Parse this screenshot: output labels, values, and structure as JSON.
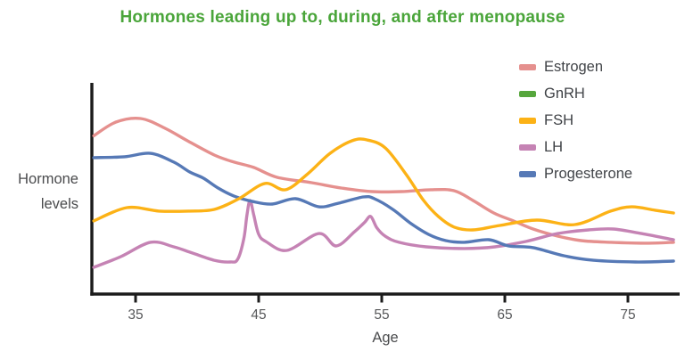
{
  "title": {
    "text": "Hormones leading up to, during, and after menopause",
    "color": "#4aa53a"
  },
  "axes": {
    "y_label_lines": [
      "Hormone",
      "levels"
    ],
    "x_label": "Age",
    "x_tick_labels": [
      "35",
      "45",
      "55",
      "65",
      "75"
    ]
  },
  "legend": {
    "items": [
      {
        "label": "Estrogen",
        "color": "#e5908e"
      },
      {
        "label": "GnRH",
        "color": "#56a63c"
      },
      {
        "label": "FSH",
        "color": "#fcb216"
      },
      {
        "label": "LH",
        "color": "#c583b4"
      },
      {
        "label": "Progesterone",
        "color": "#5679b6"
      }
    ]
  },
  "chart_data": {
    "type": "line",
    "title": "Hormones leading up to, during, and after menopause",
    "xlabel": "Age",
    "ylabel": "Hormone levels",
    "x_axis": {
      "ticks": [
        35,
        45,
        55,
        65,
        75
      ],
      "range": [
        31.5,
        79
      ]
    },
    "y_axis": {
      "range": [
        0,
        100
      ],
      "ticks": [],
      "note": "unlabeled relative hormone level"
    },
    "grid": false,
    "legend_position": "top-right",
    "draw_order": [
      "Estrogen",
      "LH",
      "Progesterone",
      "FSH"
    ],
    "series": [
      {
        "name": "Estrogen",
        "color": "#e5908e",
        "points": [
          [
            31.6,
            74
          ],
          [
            33.4,
            80.4
          ],
          [
            35.4,
            82.1
          ],
          [
            37.4,
            77.5
          ],
          [
            39.2,
            71.7
          ],
          [
            41.4,
            65
          ],
          [
            43,
            61.7
          ],
          [
            44.6,
            59.2
          ],
          [
            46.5,
            54.6
          ],
          [
            49.3,
            52.1
          ],
          [
            51.7,
            49.6
          ],
          [
            54.2,
            47.9
          ],
          [
            56.6,
            47.9
          ],
          [
            59,
            48.8
          ],
          [
            60.9,
            48.3
          ],
          [
            62.4,
            43.8
          ],
          [
            64.1,
            37.9
          ],
          [
            65.7,
            34.2
          ],
          [
            67.3,
            30.4
          ],
          [
            69.3,
            27.1
          ],
          [
            71.2,
            25
          ],
          [
            73.6,
            24.2
          ],
          [
            76.7,
            23.8
          ],
          [
            78.7,
            24.2
          ]
        ]
      },
      {
        "name": "GnRH",
        "color": "#56a63c",
        "points": [],
        "note": "appears in legend but no curve is visible in the plot"
      },
      {
        "name": "FSH",
        "color": "#fcb216",
        "points": [
          [
            31.6,
            34.2
          ],
          [
            34.3,
            40.4
          ],
          [
            36.9,
            38.8
          ],
          [
            39.3,
            38.8
          ],
          [
            41.4,
            39.6
          ],
          [
            43.4,
            44.6
          ],
          [
            45.5,
            51.7
          ],
          [
            47.2,
            48.8
          ],
          [
            49,
            56.3
          ],
          [
            50.8,
            65.8
          ],
          [
            52.6,
            71.7
          ],
          [
            53.8,
            72.1
          ],
          [
            55.3,
            68.3
          ],
          [
            57,
            55.8
          ],
          [
            58.4,
            43.8
          ],
          [
            59.6,
            36.3
          ],
          [
            60.9,
            31.3
          ],
          [
            62.4,
            30
          ],
          [
            64.6,
            32.1
          ],
          [
            67.6,
            34.6
          ],
          [
            70.7,
            32.5
          ],
          [
            73.6,
            38.8
          ],
          [
            75.3,
            40.8
          ],
          [
            77.2,
            39.2
          ],
          [
            78.7,
            37.9
          ]
        ]
      },
      {
        "name": "LH",
        "color": "#c583b4",
        "points": [
          [
            31.6,
            12.5
          ],
          [
            33.8,
            17.5
          ],
          [
            36.2,
            24.2
          ],
          [
            38.1,
            22.1
          ],
          [
            39.6,
            19.2
          ],
          [
            41.4,
            15.8
          ],
          [
            42.7,
            15
          ],
          [
            43.3,
            16.3
          ],
          [
            43.8,
            26
          ],
          [
            44.05,
            37
          ],
          [
            44.3,
            43.8
          ],
          [
            44.6,
            37
          ],
          [
            45,
            28
          ],
          [
            45.6,
            24.5
          ],
          [
            47.3,
            20.4
          ],
          [
            49.9,
            28.3
          ],
          [
            51.3,
            22.5
          ],
          [
            52.8,
            29.2
          ],
          [
            53.6,
            33.5
          ],
          [
            54.1,
            36.3
          ],
          [
            54.6,
            31
          ],
          [
            55.3,
            27
          ],
          [
            56.4,
            24.2
          ],
          [
            58.6,
            22.1
          ],
          [
            61.7,
            21.3
          ],
          [
            64.2,
            22.1
          ],
          [
            66.7,
            24.6
          ],
          [
            69.3,
            28.3
          ],
          [
            71.8,
            30
          ],
          [
            73.8,
            30.4
          ],
          [
            76.1,
            28.3
          ],
          [
            78.7,
            25.4
          ]
        ]
      },
      {
        "name": "Progesterone",
        "color": "#5679b6",
        "points": [
          [
            31.6,
            63.8
          ],
          [
            34.1,
            64.2
          ],
          [
            36.2,
            65.8
          ],
          [
            38.1,
            61.7
          ],
          [
            39.4,
            57.1
          ],
          [
            40.5,
            54.2
          ],
          [
            41.7,
            49.6
          ],
          [
            43,
            45.8
          ],
          [
            44.5,
            43.3
          ],
          [
            46.1,
            42.1
          ],
          [
            48,
            44.6
          ],
          [
            49.9,
            40.8
          ],
          [
            51.5,
            42.5
          ],
          [
            53.5,
            45.4
          ],
          [
            54.4,
            44.6
          ],
          [
            55.9,
            39.6
          ],
          [
            57.3,
            33.3
          ],
          [
            58.8,
            27.9
          ],
          [
            60.2,
            25
          ],
          [
            61.7,
            24.2
          ],
          [
            63.7,
            25.4
          ],
          [
            65.3,
            22.5
          ],
          [
            67.3,
            21.7
          ],
          [
            69.8,
            17.9
          ],
          [
            72.2,
            15.8
          ],
          [
            75.6,
            15
          ],
          [
            78.7,
            15.4
          ]
        ]
      }
    ]
  }
}
